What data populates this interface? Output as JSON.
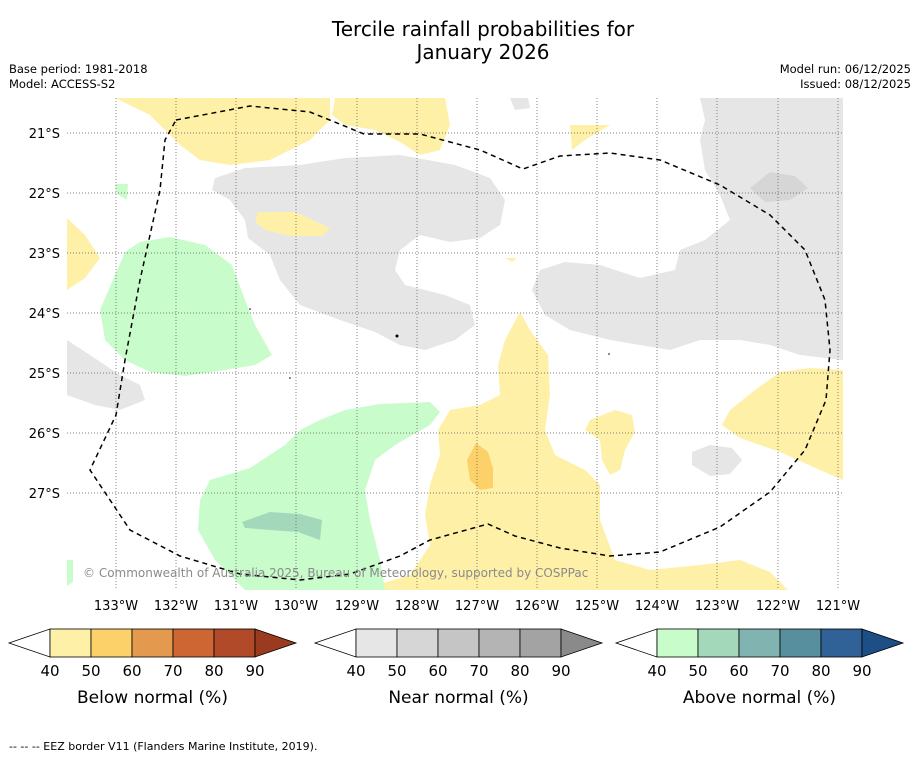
{
  "title_line1": "Tercile rainfall probabilities for",
  "title_line2": "January 2026",
  "meta": {
    "base_period": "Base period: 1981-2018",
    "model": "Model: ACCESS-S2",
    "model_run": "Model run: 06/12/2025",
    "issued": "Issued: 08/12/2025"
  },
  "map": {
    "lat_labels": [
      "21°S",
      "22°S",
      "23°S",
      "24°S",
      "25°S",
      "26°S",
      "27°S"
    ],
    "lon_labels": [
      "133°W",
      "132°W",
      "131°W",
      "130°W",
      "129°W",
      "128°W",
      "127°W",
      "126°W",
      "125°W",
      "124°W",
      "123°W",
      "122°W",
      "121°W"
    ],
    "copyright": "© Commonwealth of Australia 2025, Bureau of Meteorology, supported by COSPPac"
  },
  "colorbars": [
    {
      "label": "Below normal (%)",
      "ticks": [
        "40",
        "50",
        "60",
        "70",
        "80",
        "90"
      ],
      "colors": [
        "#ffffff",
        "#fff0a8",
        "#fdd16a",
        "#e49a4e",
        "#cd6632",
        "#b04a28",
        "#9a3a1e"
      ]
    },
    {
      "label": "Near normal (%)",
      "ticks": [
        "40",
        "50",
        "60",
        "70",
        "80",
        "90"
      ],
      "colors": [
        "#ffffff",
        "#e6e6e6",
        "#d6d6d6",
        "#c5c5c5",
        "#b4b4b4",
        "#a3a3a3",
        "#8a8a8a"
      ]
    },
    {
      "label": "Above normal (%)",
      "ticks": [
        "40",
        "50",
        "60",
        "70",
        "80",
        "90"
      ],
      "colors": [
        "#ffffff",
        "#c9fccb",
        "#a3d8bb",
        "#81b3b0",
        "#578f9e",
        "#306197",
        "#1d4f86"
      ]
    }
  ],
  "footnote": "--  --  -- EEZ border V11 (Flanders Marine Institute, 2019)."
}
